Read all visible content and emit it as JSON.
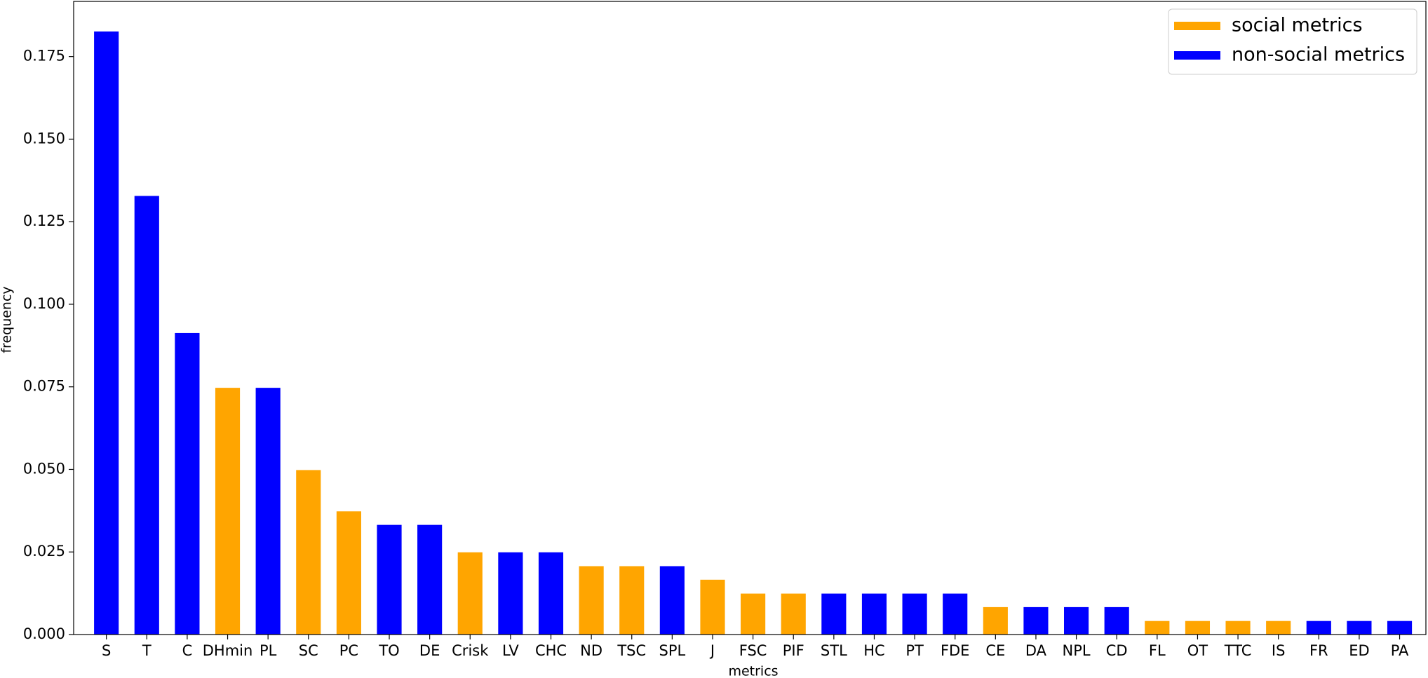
{
  "chart_data": {
    "type": "bar",
    "x_label": "metrics",
    "y_label": "frequency",
    "categories": [
      "S",
      "T",
      "C",
      "DHmin",
      "PL",
      "SC",
      "PC",
      "TO",
      "DE",
      "Crisk",
      "LV",
      "CHC",
      "ND",
      "TSC",
      "SPL",
      "J",
      "FSC",
      "PIF",
      "STL",
      "HC",
      "PT",
      "FDE",
      "CE",
      "DA",
      "NPL",
      "CD",
      "FL",
      "OT",
      "TTC",
      "IS",
      "FR",
      "ED",
      "PA"
    ],
    "series": [
      {
        "name": "social metrics",
        "color": "#ffa500",
        "values": [
          null,
          null,
          null,
          0.0747,
          null,
          0.0498,
          0.0373,
          null,
          null,
          0.0249,
          null,
          null,
          0.0207,
          0.0207,
          null,
          0.0166,
          0.0124,
          0.0124,
          null,
          null,
          null,
          null,
          0.0083,
          null,
          null,
          null,
          0.0041,
          0.0041,
          0.0041,
          0.0041,
          null,
          null,
          null
        ]
      },
      {
        "name": "non-social metrics",
        "color": "#0000ff",
        "values": [
          0.1826,
          0.1328,
          0.0913,
          null,
          0.0747,
          null,
          null,
          0.0332,
          0.0332,
          null,
          0.0249,
          0.0249,
          null,
          null,
          0.0207,
          null,
          null,
          null,
          0.0124,
          0.0124,
          0.0124,
          0.0124,
          null,
          0.0083,
          0.0083,
          0.0083,
          null,
          null,
          null,
          null,
          0.0041,
          0.0041,
          0.0041
        ]
      }
    ],
    "ylim": [
      0,
      0.1917
    ],
    "yticks": [
      {
        "value": 0,
        "label": "0.000"
      },
      {
        "value": 0.025,
        "label": "0.025"
      },
      {
        "value": 0.05,
        "label": "0.050"
      },
      {
        "value": 0.075,
        "label": "0.075"
      },
      {
        "value": 0.1,
        "label": "0.100"
      },
      {
        "value": 0.125,
        "label": "0.125"
      },
      {
        "value": 0.15,
        "label": "0.150"
      },
      {
        "value": 0.175,
        "label": "0.175"
      }
    ],
    "grid": false,
    "legend": "upper right"
  }
}
